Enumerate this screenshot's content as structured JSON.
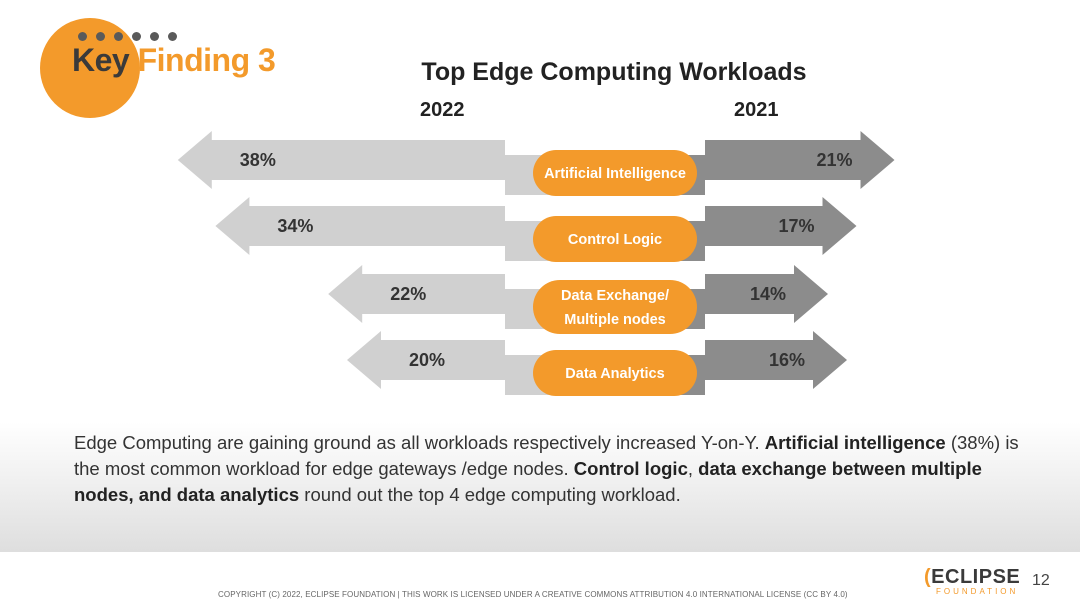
{
  "badge": {
    "word1": "Key",
    "word2": "Finding 3"
  },
  "title": "Top Edge Computing Workloads",
  "years": {
    "left": "2022",
    "right": "2021"
  },
  "chart_data": {
    "type": "bar",
    "title": "Top Edge Computing Workloads",
    "categories": [
      "Artificial Intelligence",
      "Control Logic",
      "Data Exchange/ Multiple nodes",
      "Data Analytics"
    ],
    "series": [
      {
        "name": "2022",
        "values": [
          38,
          34,
          22,
          20
        ],
        "labels": [
          "38%",
          "34%",
          "22%",
          "20%"
        ]
      },
      {
        "name": "2021",
        "values": [
          21,
          17,
          14,
          16
        ],
        "labels": [
          "21%",
          "17%",
          "14%",
          "16%"
        ]
      }
    ],
    "colors": {
      "left_arrow": "#d0d0d0",
      "left_arrow_dark": "#b4b4b4",
      "right_arrow": "#8c8c8c",
      "right_arrow_dark": "#6c6c6c",
      "pill": "#f39a2b",
      "pill_text": "#ffffff"
    }
  },
  "summary": {
    "p1": "Edge Computing are gaining ground as all workloads respectively increased Y-on-Y. ",
    "b1": "Artificial intelligence",
    "p2": " (38%) is the most common workload for edge gateways /edge nodes. ",
    "b2": "Control logic",
    "p3": ", ",
    "b3": "data exchange between multiple nodes, and data analytics",
    "p4": " round out the top 4 edge computing workload."
  },
  "footer": {
    "copyright": "COPYRIGHT (C) 2022, ECLIPSE FOUNDATION | THIS WORK IS LICENSED UNDER A CREATIVE COMMONS ATTRIBUTION 4.0 INTERNATIONAL LICENSE (CC BY 4.0)",
    "logo_c": "(",
    "logo_text": "ECLIPSE",
    "logo_sub": "FOUNDATION",
    "page": "12"
  }
}
